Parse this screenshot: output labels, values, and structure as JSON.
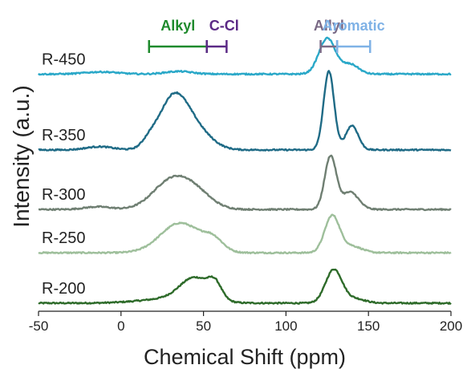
{
  "chart_data": {
    "type": "line",
    "xlabel": "Chemical Shift (ppm)",
    "ylabel": "Intensity (a.u.)",
    "xlim": [
      -50,
      200
    ],
    "xticks": [
      -50,
      0,
      50,
      100,
      150,
      200
    ],
    "xtick_labels": [
      "-50",
      "0",
      "50",
      "100",
      "150",
      "200"
    ],
    "ylim": [
      0,
      5.6
    ],
    "grid": false,
    "series": [
      {
        "name": "R-200",
        "color": "#2e6b2a",
        "baseline": 0.15,
        "peaks": [
          {
            "center": 30,
            "height": 0.08,
            "width": 18
          },
          {
            "center": 45,
            "height": 0.42,
            "width": 9
          },
          {
            "center": 57,
            "height": 0.26,
            "width": 4
          },
          {
            "center": 129,
            "height": 0.62,
            "width": 5
          },
          {
            "center": 142,
            "height": 0.08,
            "width": 6
          }
        ]
      },
      {
        "name": "R-250",
        "color": "#9ebf9b",
        "baseline": 1.08,
        "peaks": [
          {
            "center": 36,
            "height": 0.55,
            "width": 12
          },
          {
            "center": 56,
            "height": 0.2,
            "width": 6
          },
          {
            "center": 128,
            "height": 0.68,
            "width": 4.5
          },
          {
            "center": 140,
            "height": 0.12,
            "width": 6
          }
        ]
      },
      {
        "name": "R-300",
        "color": "#6f7f72",
        "baseline": 1.88,
        "peaks": [
          {
            "center": -14,
            "height": 0.05,
            "width": 8
          },
          {
            "center": 30,
            "height": 0.5,
            "width": 11
          },
          {
            "center": 45,
            "height": 0.28,
            "width": 10
          },
          {
            "center": 127,
            "height": 0.98,
            "width": 3.5
          },
          {
            "center": 139,
            "height": 0.32,
            "width": 5
          }
        ]
      },
      {
        "name": "R-350",
        "color": "#1f6b86",
        "baseline": 2.98,
        "peaks": [
          {
            "center": -13,
            "height": 0.06,
            "width": 8
          },
          {
            "center": 17,
            "height": 0.1,
            "width": 4
          },
          {
            "center": 32,
            "height": 0.98,
            "width": 9
          },
          {
            "center": 47,
            "height": 0.28,
            "width": 9
          },
          {
            "center": 126,
            "height": 1.45,
            "width": 3.2
          },
          {
            "center": 140,
            "height": 0.45,
            "width": 3.8
          }
        ]
      },
      {
        "name": "R-450",
        "color": "#2aa8c8",
        "baseline": 4.38,
        "peaks": [
          {
            "center": -12,
            "height": 0.04,
            "width": 10
          },
          {
            "center": 35,
            "height": 0.05,
            "width": 8
          },
          {
            "center": 125,
            "height": 0.66,
            "width": 5
          },
          {
            "center": 139,
            "height": 0.18,
            "width": 5
          }
        ]
      }
    ],
    "regions": [
      {
        "label": "Alkyl",
        "start": 17,
        "end": 52,
        "color": "#1e8a2c"
      },
      {
        "label": "C-Cl",
        "start": 52,
        "end": 64,
        "color": "#5b2a86"
      },
      {
        "label": "Allyl",
        "start": 121,
        "end": 131,
        "color": "#7a6a86"
      },
      {
        "label": "Aromatic",
        "start": 131,
        "end": 151,
        "color": "#7fb2e6"
      }
    ]
  }
}
